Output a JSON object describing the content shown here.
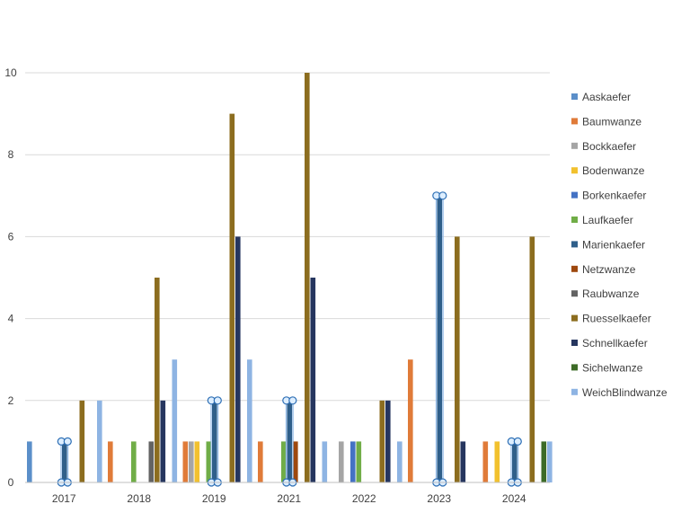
{
  "chart_data": {
    "type": "bar",
    "title": "",
    "xlabel": "",
    "ylabel": "",
    "ylim": [
      0,
      10
    ],
    "yticks": [
      0,
      2,
      4,
      6,
      8,
      10
    ],
    "grid": "horizontal",
    "legend_position": "right",
    "categories": [
      "2017",
      "2018",
      "2019",
      "2021",
      "2022",
      "2023",
      "2024"
    ],
    "series": [
      {
        "name": "Aaskaefer",
        "color": "#5b8fc9",
        "values": [
          1,
          0,
          0,
          0,
          0,
          0,
          0
        ]
      },
      {
        "name": "Baumwanze",
        "color": "#e07b39",
        "values": [
          0,
          1,
          1,
          1,
          0,
          3,
          1
        ]
      },
      {
        "name": "Bockkaefer",
        "color": "#a5a5a5",
        "values": [
          0,
          0,
          1,
          0,
          1,
          0,
          0
        ]
      },
      {
        "name": "Bodenwanze",
        "color": "#f2c12e",
        "values": [
          0,
          0,
          1,
          0,
          0,
          0,
          1
        ]
      },
      {
        "name": "Borkenkaefer",
        "color": "#4472c4",
        "values": [
          0,
          0,
          0,
          0,
          1,
          0,
          0
        ]
      },
      {
        "name": "Laufkaefer",
        "color": "#70ad47",
        "values": [
          0,
          1,
          1,
          1,
          1,
          0,
          0
        ]
      },
      {
        "name": "Marienkaefer",
        "color": "#2f5f8a",
        "values": [
          1,
          0,
          2,
          2,
          0,
          7,
          1
        ]
      },
      {
        "name": "Netzwanze",
        "color": "#9e480e",
        "values": [
          0,
          0,
          0,
          1,
          0,
          0,
          0
        ]
      },
      {
        "name": "Raubwanze",
        "color": "#636363",
        "values": [
          0,
          1,
          0,
          0,
          0,
          0,
          0
        ]
      },
      {
        "name": "Ruesselkaefer",
        "color": "#8c6d1f",
        "values": [
          2,
          5,
          9,
          10,
          2,
          6,
          6
        ]
      },
      {
        "name": "Schnellkaefer",
        "color": "#26365f",
        "values": [
          0,
          2,
          6,
          5,
          2,
          1,
          0
        ]
      },
      {
        "name": "Sichelwanze",
        "color": "#3d6b27",
        "values": [
          0,
          0,
          0,
          0,
          0,
          0,
          1
        ]
      },
      {
        "name": "WeichBlindwanze",
        "color": "#8eb4e3",
        "values": [
          2,
          3,
          3,
          1,
          1,
          0,
          1
        ]
      }
    ],
    "selected_series": "Marienkaefer"
  }
}
